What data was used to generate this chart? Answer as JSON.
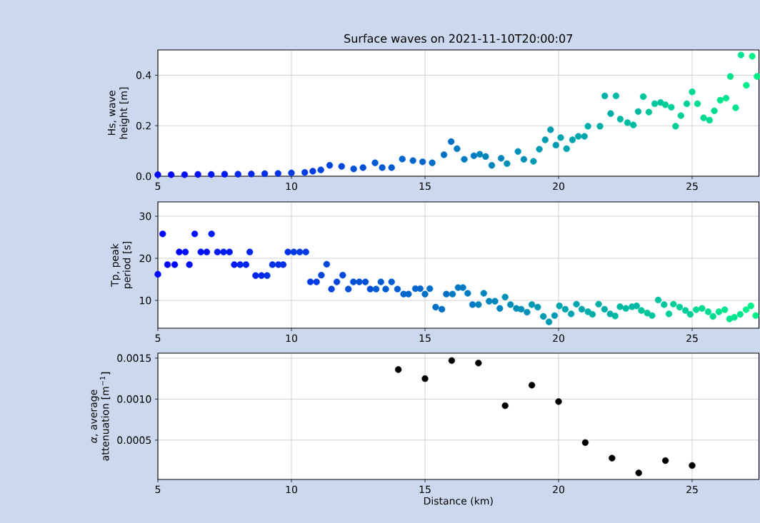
{
  "chart_data": [
    {
      "type": "scatter",
      "title": "Surface waves on 2021-11-10T20:00:07",
      "ylabel": "Hs, wave height [m]",
      "marker": "circle",
      "grid": true,
      "xlim": [
        5,
        27.5
      ],
      "xticks": [
        5,
        10,
        15,
        20,
        25
      ],
      "ylim": [
        0,
        0.5
      ],
      "yticks": [
        {
          "value": 0,
          "label": "0.0"
        },
        {
          "value": 0.2,
          "label": "0.2"
        },
        {
          "value": 0.4,
          "label": "0.4"
        }
      ],
      "x": [
        5.0,
        5.5,
        6.0,
        6.5,
        7.0,
        7.5,
        8.0,
        8.5,
        9.0,
        9.5,
        10.0,
        10.5,
        10.8,
        11.1,
        11.43,
        11.88,
        12.33,
        12.68,
        13.13,
        13.4,
        13.75,
        14.15,
        14.55,
        14.91,
        15.27,
        15.71,
        15.98,
        16.2,
        16.47,
        16.83,
        17.05,
        17.27,
        17.5,
        17.85,
        18.07,
        18.48,
        18.7,
        19.06,
        19.28,
        19.5,
        19.7,
        19.9,
        20.08,
        20.3,
        20.52,
        20.74,
        20.97,
        21.1,
        21.55,
        21.73,
        21.95,
        22.15,
        22.31,
        22.58,
        22.8,
        22.98,
        23.17,
        23.38,
        23.6,
        23.82,
        24.0,
        24.22,
        24.38,
        24.58,
        24.8,
        25.0,
        25.2,
        25.43,
        25.65,
        25.83,
        26.05,
        26.27,
        26.43,
        26.63,
        26.83,
        27.03,
        27.25,
        27.43
      ],
      "values": [
        0.006,
        0.006,
        0.006,
        0.007,
        0.007,
        0.008,
        0.008,
        0.009,
        0.01,
        0.011,
        0.013,
        0.015,
        0.02,
        0.025,
        0.043,
        0.039,
        0.029,
        0.034,
        0.053,
        0.034,
        0.034,
        0.068,
        0.062,
        0.057,
        0.053,
        0.085,
        0.137,
        0.109,
        0.067,
        0.081,
        0.087,
        0.078,
        0.043,
        0.071,
        0.05,
        0.098,
        0.067,
        0.059,
        0.107,
        0.144,
        0.184,
        0.123,
        0.153,
        0.109,
        0.144,
        0.158,
        0.158,
        0.198,
        0.198,
        0.318,
        0.248,
        0.318,
        0.226,
        0.212,
        0.203,
        0.256,
        0.315,
        0.254,
        0.287,
        0.292,
        0.283,
        0.273,
        0.198,
        0.24,
        0.287,
        0.334,
        0.287,
        0.231,
        0.222,
        0.259,
        0.301,
        0.309,
        0.395,
        0.271,
        0.48,
        0.36,
        0.475,
        0.395
      ],
      "colors": [
        "#0005fc",
        "#0005fc",
        "#0010f7",
        "#0010f7",
        "#001bf2",
        "#001bf2",
        "#0025ec",
        "#0025ec",
        "#0030e7",
        "#0030e7",
        "#003ae2",
        "#003ae2",
        "#003ae2",
        "#0045dc",
        "#0045dc",
        "#0045dc",
        "#0050d7",
        "#0050d7",
        "#005ad2",
        "#005ad2",
        "#005ad2",
        "#0065cc",
        "#0065cc",
        "#0065cc",
        "#0070c7",
        "#0070c7",
        "#0070c7",
        "#007ac2",
        "#007ac2",
        "#007ac2",
        "#0085bd",
        "#0085bd",
        "#0085bd",
        "#0085bd",
        "#008fb7",
        "#008fb7",
        "#008fb7",
        "#009ab2",
        "#009ab2",
        "#009ab2",
        "#009ab2",
        "#009ab2",
        "#00a5ad",
        "#00a5ad",
        "#00a5ad",
        "#00a5ad",
        "#00a5ad",
        "#00afa7",
        "#00afa7",
        "#00afa7",
        "#00afa7",
        "#00baa2",
        "#00baa2",
        "#00baa2",
        "#00baa2",
        "#00baa2",
        "#00c59d",
        "#00c59d",
        "#00c59d",
        "#00c59d",
        "#00cf97",
        "#00cf97",
        "#00cf97",
        "#00cf97",
        "#00cf97",
        "#00da92",
        "#00da92",
        "#00da92",
        "#00da92",
        "#00da92",
        "#00e48d",
        "#00e48d",
        "#00e48d",
        "#00e48d",
        "#00e48d",
        "#00ef87",
        "#00ef87",
        "#00ef87"
      ]
    },
    {
      "type": "scatter",
      "ylabel": "Tp, peak period [s]",
      "marker": "circle",
      "grid": true,
      "xlim": [
        5,
        27.5
      ],
      "xticks": [
        5,
        10,
        15,
        20,
        25
      ],
      "ylim": [
        3.4,
        33.4
      ],
      "yticks": [
        10,
        20,
        30
      ],
      "x": [
        5.0,
        5.18,
        5.36,
        5.63,
        5.8,
        6.03,
        6.18,
        6.38,
        6.61,
        6.83,
        7.01,
        7.23,
        7.46,
        7.68,
        7.86,
        8.08,
        8.3,
        8.44,
        8.66,
        8.88,
        9.09,
        9.29,
        9.51,
        9.69,
        9.87,
        10.09,
        10.31,
        10.54,
        10.71,
        10.94,
        11.12,
        11.32,
        11.5,
        11.7,
        11.92,
        12.13,
        12.32,
        12.54,
        12.77,
        12.95,
        13.17,
        13.35,
        13.53,
        13.75,
        13.97,
        14.2,
        14.38,
        14.64,
        14.82,
        15.0,
        15.18,
        15.4,
        15.63,
        15.8,
        16.03,
        16.24,
        16.42,
        16.6,
        16.78,
        17.0,
        17.2,
        17.4,
        17.62,
        17.8,
        18.0,
        18.2,
        18.42,
        18.6,
        18.82,
        19.0,
        19.22,
        19.43,
        19.64,
        19.85,
        20.03,
        20.25,
        20.47,
        20.67,
        20.87,
        21.1,
        21.27,
        21.5,
        21.72,
        21.93,
        22.12,
        22.3,
        22.52,
        22.75,
        22.92,
        23.1,
        23.32,
        23.5,
        23.73,
        23.95,
        24.13,
        24.3,
        24.53,
        24.75,
        24.93,
        25.15,
        25.37,
        25.6,
        25.78,
        26.0,
        26.22,
        26.4,
        26.58,
        26.8,
        27.02,
        27.2,
        27.38
      ],
      "values": [
        16.2,
        25.8,
        18.5,
        18.5,
        21.5,
        21.5,
        18.5,
        25.8,
        21.5,
        21.5,
        25.8,
        21.5,
        21.5,
        21.5,
        18.5,
        18.5,
        18.5,
        21.5,
        15.9,
        15.9,
        15.9,
        18.5,
        18.5,
        18.5,
        21.5,
        21.5,
        21.5,
        21.5,
        14.4,
        14.4,
        16.0,
        18.6,
        12.7,
        14.4,
        16.0,
        12.7,
        14.4,
        14.4,
        14.4,
        12.7,
        12.7,
        14.4,
        12.7,
        14.4,
        12.7,
        11.5,
        11.5,
        12.8,
        12.8,
        11.5,
        12.8,
        8.4,
        7.9,
        11.5,
        11.5,
        13.05,
        13.05,
        11.7,
        9.0,
        9.0,
        11.7,
        9.8,
        9.8,
        8.1,
        10.8,
        9.0,
        8.1,
        7.9,
        7.2,
        9.0,
        8.4,
        6.2,
        4.9,
        6.4,
        8.7,
        7.9,
        6.8,
        9.1,
        7.9,
        7.3,
        6.7,
        9.1,
        7.9,
        6.8,
        6.3,
        8.5,
        8.1,
        8.5,
        8.7,
        7.6,
        7.0,
        6.4,
        10.1,
        9.0,
        6.8,
        9.1,
        8.4,
        7.6,
        6.7,
        7.8,
        8.1,
        7.3,
        6.2,
        7.3,
        7.8,
        5.6,
        6.0,
        6.7,
        7.8,
        8.7,
        6.4
      ],
      "colors": [
        "#0005fc",
        "#0005fc",
        "#0005fc",
        "#0005fc",
        "#0005fc",
        "#0010f7",
        "#0010f7",
        "#0010f7",
        "#0010f7",
        "#0010f7",
        "#001bf2",
        "#001bf2",
        "#001bf2",
        "#001bf2",
        "#001bf2",
        "#0025ec",
        "#0025ec",
        "#0025ec",
        "#0025ec",
        "#0025ec",
        "#0030e7",
        "#0030e7",
        "#0030e7",
        "#0030e7",
        "#0030e7",
        "#003ae2",
        "#003ae2",
        "#003ae2",
        "#003ae2",
        "#003ae2",
        "#0045dc",
        "#0045dc",
        "#0045dc",
        "#0045dc",
        "#0045dc",
        "#0050d7",
        "#0050d7",
        "#0050d7",
        "#0050d7",
        "#0050d7",
        "#005ad2",
        "#005ad2",
        "#005ad2",
        "#005ad2",
        "#005ad2",
        "#0065cc",
        "#0065cc",
        "#0065cc",
        "#0065cc",
        "#0070c7",
        "#0070c7",
        "#0070c7",
        "#0070c7",
        "#0070c7",
        "#007ac2",
        "#007ac2",
        "#007ac2",
        "#007ac2",
        "#007ac2",
        "#0085bd",
        "#0085bd",
        "#0085bd",
        "#0085bd",
        "#0085bd",
        "#008fb7",
        "#008fb7",
        "#008fb7",
        "#008fb7",
        "#008fb7",
        "#009ab2",
        "#009ab2",
        "#009ab2",
        "#009ab2",
        "#009ab2",
        "#00a5ad",
        "#00a5ad",
        "#00a5ad",
        "#00a5ad",
        "#00a5ad",
        "#00afa7",
        "#00afa7",
        "#00afa7",
        "#00afa7",
        "#00afa7",
        "#00baa2",
        "#00baa2",
        "#00baa2",
        "#00baa2",
        "#00baa2",
        "#00c59d",
        "#00c59d",
        "#00c59d",
        "#00c59d",
        "#00c59d",
        "#00cf97",
        "#00cf97",
        "#00cf97",
        "#00cf97",
        "#00cf97",
        "#00da92",
        "#00da92",
        "#00da92",
        "#00da92",
        "#00e48d",
        "#00e48d",
        "#00e48d",
        "#00e48d",
        "#00e48d",
        "#00ef87",
        "#00ef87",
        "#00ef87"
      ]
    },
    {
      "type": "scatter",
      "xlabel": "Distance (km)",
      "ylabel": "*α*, average attenuation [m$^{−1}$]",
      "marker": "circle",
      "grid": true,
      "color": "#000000",
      "xlim": [
        5,
        27.5
      ],
      "xticks": [
        5,
        10,
        15,
        20,
        25
      ],
      "ylim": [
        2e-05,
        0.00156
      ],
      "yticks": [
        {
          "value": 0.0005,
          "label": "0.0005"
        },
        {
          "value": 0.001,
          "label": "0.0010"
        },
        {
          "value": 0.0015,
          "label": "0.0015"
        }
      ],
      "x": [
        14,
        15,
        16,
        17,
        18,
        19,
        20,
        21,
        22,
        23,
        24,
        25
      ],
      "values": [
        0.00136,
        0.00125,
        0.00147,
        0.00144,
        0.00092,
        0.00117,
        0.00097,
        0.00047,
        0.00028,
        0.0001,
        0.00025,
        0.00019
      ]
    }
  ]
}
